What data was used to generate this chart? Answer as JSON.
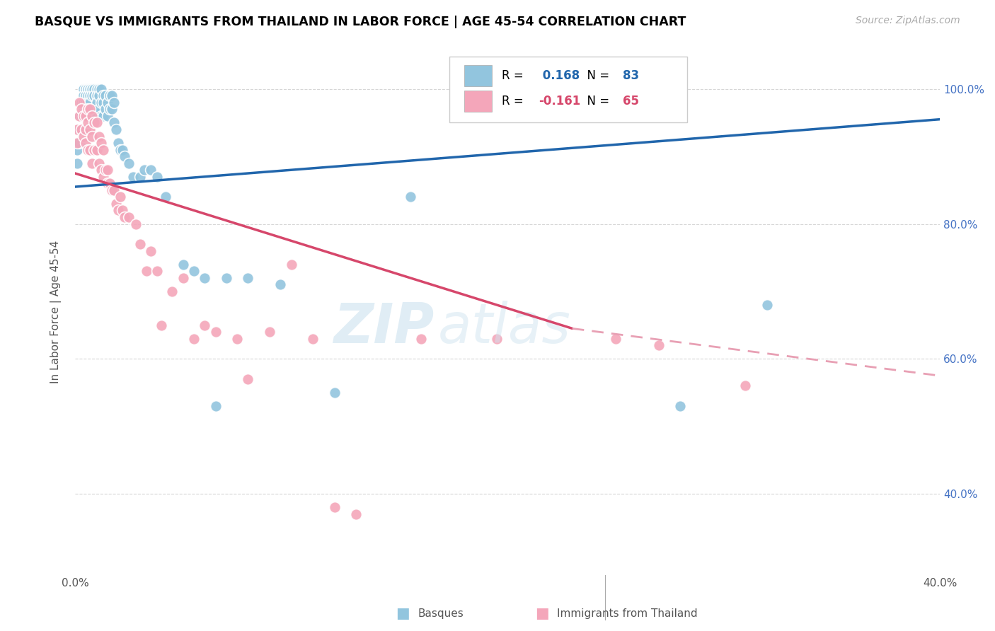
{
  "title": "BASQUE VS IMMIGRANTS FROM THAILAND IN LABOR FORCE | AGE 45-54 CORRELATION CHART",
  "source": "Source: ZipAtlas.com",
  "ylabel": "In Labor Force | Age 45-54",
  "xlim": [
    0.0,
    0.4
  ],
  "ylim": [
    0.28,
    1.06
  ],
  "xticks": [
    0.0,
    0.05,
    0.1,
    0.15,
    0.2,
    0.25,
    0.3,
    0.35,
    0.4
  ],
  "yticks": [
    0.4,
    0.6,
    0.8,
    1.0
  ],
  "ytick_labels": [
    "40.0%",
    "60.0%",
    "80.0%",
    "100.0%"
  ],
  "xtick_labels": [
    "0.0%",
    "",
    "",
    "",
    "",
    "",
    "",
    "",
    "40.0%"
  ],
  "r_blue": 0.168,
  "n_blue": 83,
  "r_pink": -0.161,
  "n_pink": 65,
  "blue_color": "#92c5de",
  "pink_color": "#f4a6ba",
  "trend_blue_color": "#2166ac",
  "trend_pink_color": "#d6476b",
  "trend_pink_dashed_color": "#e8a0b4",
  "blue_trend_x0": 0.0,
  "blue_trend_y0": 0.855,
  "blue_trend_x1": 0.4,
  "blue_trend_y1": 0.955,
  "pink_trend_x0": 0.0,
  "pink_trend_y0": 0.875,
  "pink_trend_x1_solid": 0.23,
  "pink_trend_y1_solid": 0.645,
  "pink_trend_x1_dash": 0.4,
  "pink_trend_y1_dash": 0.575,
  "blue_scatter_x": [
    0.001,
    0.001,
    0.002,
    0.002,
    0.002,
    0.003,
    0.003,
    0.003,
    0.004,
    0.004,
    0.004,
    0.004,
    0.004,
    0.005,
    0.005,
    0.005,
    0.005,
    0.005,
    0.005,
    0.006,
    0.006,
    0.006,
    0.006,
    0.006,
    0.006,
    0.006,
    0.007,
    0.007,
    0.007,
    0.007,
    0.008,
    0.008,
    0.008,
    0.008,
    0.009,
    0.009,
    0.009,
    0.01,
    0.01,
    0.01,
    0.01,
    0.011,
    0.011,
    0.011,
    0.012,
    0.012,
    0.012,
    0.013,
    0.013,
    0.013,
    0.014,
    0.014,
    0.015,
    0.015,
    0.016,
    0.016,
    0.017,
    0.017,
    0.018,
    0.018,
    0.019,
    0.02,
    0.021,
    0.022,
    0.023,
    0.025,
    0.027,
    0.03,
    0.032,
    0.035,
    0.038,
    0.042,
    0.05,
    0.055,
    0.06,
    0.065,
    0.07,
    0.08,
    0.095,
    0.12,
    0.155,
    0.28,
    0.32
  ],
  "blue_scatter_y": [
    0.91,
    0.89,
    0.96,
    0.94,
    0.92,
    0.98,
    0.96,
    0.94,
    1.0,
    1.0,
    0.99,
    0.98,
    0.97,
    1.0,
    1.0,
    0.99,
    0.98,
    0.97,
    0.96,
    1.0,
    1.0,
    1.0,
    0.99,
    0.98,
    0.97,
    0.96,
    1.0,
    1.0,
    0.99,
    0.98,
    1.0,
    1.0,
    0.99,
    0.97,
    1.0,
    0.99,
    0.97,
    1.0,
    0.99,
    0.98,
    0.96,
    1.0,
    0.99,
    0.97,
    1.0,
    0.98,
    0.96,
    0.99,
    0.98,
    0.96,
    0.99,
    0.97,
    0.98,
    0.96,
    0.99,
    0.97,
    0.99,
    0.97,
    0.98,
    0.95,
    0.94,
    0.92,
    0.91,
    0.91,
    0.9,
    0.89,
    0.87,
    0.87,
    0.88,
    0.88,
    0.87,
    0.84,
    0.74,
    0.73,
    0.72,
    0.53,
    0.72,
    0.72,
    0.71,
    0.55,
    0.84,
    0.53,
    0.68
  ],
  "pink_scatter_x": [
    0.001,
    0.001,
    0.002,
    0.002,
    0.003,
    0.003,
    0.004,
    0.004,
    0.005,
    0.005,
    0.005,
    0.006,
    0.006,
    0.006,
    0.007,
    0.007,
    0.007,
    0.008,
    0.008,
    0.008,
    0.009,
    0.009,
    0.01,
    0.01,
    0.011,
    0.011,
    0.012,
    0.012,
    0.013,
    0.013,
    0.014,
    0.015,
    0.015,
    0.016,
    0.017,
    0.018,
    0.019,
    0.02,
    0.021,
    0.022,
    0.023,
    0.025,
    0.028,
    0.03,
    0.033,
    0.035,
    0.038,
    0.04,
    0.045,
    0.05,
    0.055,
    0.06,
    0.065,
    0.075,
    0.08,
    0.09,
    0.1,
    0.11,
    0.12,
    0.13,
    0.16,
    0.195,
    0.25,
    0.27,
    0.31
  ],
  "pink_scatter_y": [
    0.94,
    0.92,
    0.98,
    0.96,
    0.97,
    0.94,
    0.96,
    0.93,
    0.96,
    0.94,
    0.92,
    0.97,
    0.95,
    0.91,
    0.97,
    0.94,
    0.91,
    0.96,
    0.93,
    0.89,
    0.95,
    0.91,
    0.95,
    0.91,
    0.93,
    0.89,
    0.92,
    0.88,
    0.91,
    0.87,
    0.88,
    0.88,
    0.86,
    0.86,
    0.85,
    0.85,
    0.83,
    0.82,
    0.84,
    0.82,
    0.81,
    0.81,
    0.8,
    0.77,
    0.73,
    0.76,
    0.73,
    0.65,
    0.7,
    0.72,
    0.63,
    0.65,
    0.64,
    0.63,
    0.57,
    0.64,
    0.74,
    0.63,
    0.38,
    0.37,
    0.63,
    0.63,
    0.63,
    0.62,
    0.56
  ]
}
